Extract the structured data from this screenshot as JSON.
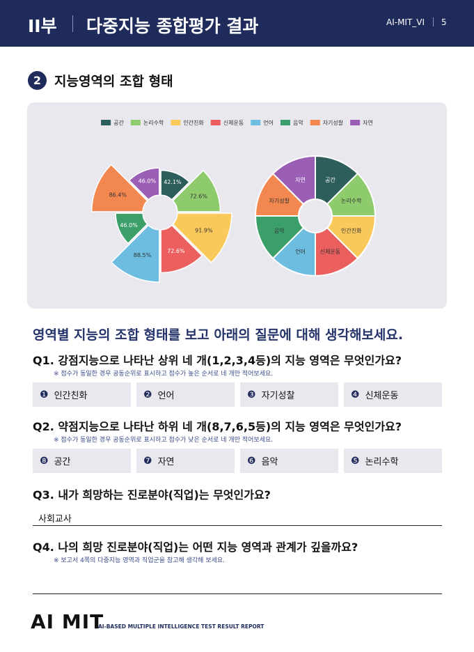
{
  "header": {
    "part": "II부",
    "title": "다중지능 종합평가 결과",
    "code": "AI-MIT_VI",
    "page": "5"
  },
  "section": {
    "number": "2",
    "title": "지능영역의 조합 형태"
  },
  "chart_data": [
    {
      "type": "polar",
      "categories": [
        "공간",
        "논리수학",
        "인간친화",
        "신체운동",
        "언어",
        "음악",
        "자기성찰",
        "자연"
      ],
      "values": [
        42.1,
        72.6,
        91.9,
        72.6,
        88.5,
        46.0,
        86.4,
        46.0
      ],
      "value_labels": [
        "42.1%",
        "72.6%",
        "91.9%",
        "72.6%",
        "88.5%",
        "46.0%",
        "86.4%",
        "46.0%"
      ],
      "colors": [
        "#2e5e5b",
        "#8ecb6c",
        "#f9c95b",
        "#eb5f5f",
        "#6dbde0",
        "#3a9f69",
        "#f2874f",
        "#9a5fb4"
      ],
      "ylim": [
        0,
        100
      ],
      "legend": "top"
    },
    {
      "type": "donut",
      "categories": [
        "공간",
        "논리수학",
        "인간친화",
        "신체운동",
        "언어",
        "음악",
        "자기성찰",
        "자연"
      ],
      "colors": [
        "#2e5e5b",
        "#8ecb6c",
        "#f9c95b",
        "#eb5f5f",
        "#6dbde0",
        "#3a9f69",
        "#f2874f",
        "#9a5fb4"
      ]
    }
  ],
  "prompt": "영역별 지능의 조합 형태를 보고 아래의 질문에 대해 생각해보세요.",
  "questions": [
    {
      "title": "Q1. 강점지능으로 나타난 상위 네 개(1,2,3,4등)의 지능 영역은 무엇인가요?",
      "note": "※ 점수가 동일한 경우 공동순위로 표시하고 점수가 높은 순서로 네 개만 적어보세요.",
      "answers": [
        {
          "marker": "❶",
          "text": "인간친화"
        },
        {
          "marker": "❷",
          "text": "언어"
        },
        {
          "marker": "❸",
          "text": "자기성찰"
        },
        {
          "marker": "❹",
          "text": "신체운동"
        }
      ]
    },
    {
      "title": "Q2. 약점지능으로 나타난 하위 네 개(8,7,6,5등)의 지능 영역은 무엇인가요?",
      "note": "※ 점수가 동일한 경우 공동순위로 표시하고 점수가 낮은 순서로 네 개만 적어보세요.",
      "answers": [
        {
          "marker": "❽",
          "text": "공간"
        },
        {
          "marker": "❼",
          "text": "자연"
        },
        {
          "marker": "❻",
          "text": "음악"
        },
        {
          "marker": "❺",
          "text": "논리수학"
        }
      ]
    },
    {
      "title": "Q3. 내가 희망하는 진로분야(직업)는 무엇인가요?",
      "answer": "사회교사"
    },
    {
      "title": "Q4. 나의 희망 진로분야(직업)는 어떤 지능 영역과 관계가 깊을까요?",
      "note": "※ 보고서 4쪽의 다중지능 영역과 직업군을 참고해 생각해 보세요."
    }
  ],
  "footer": {
    "logo": "AI MIT",
    "tagline": "AI-BASED MULTIPLE INTELLIGENCE TEST RESULT REPORT"
  }
}
